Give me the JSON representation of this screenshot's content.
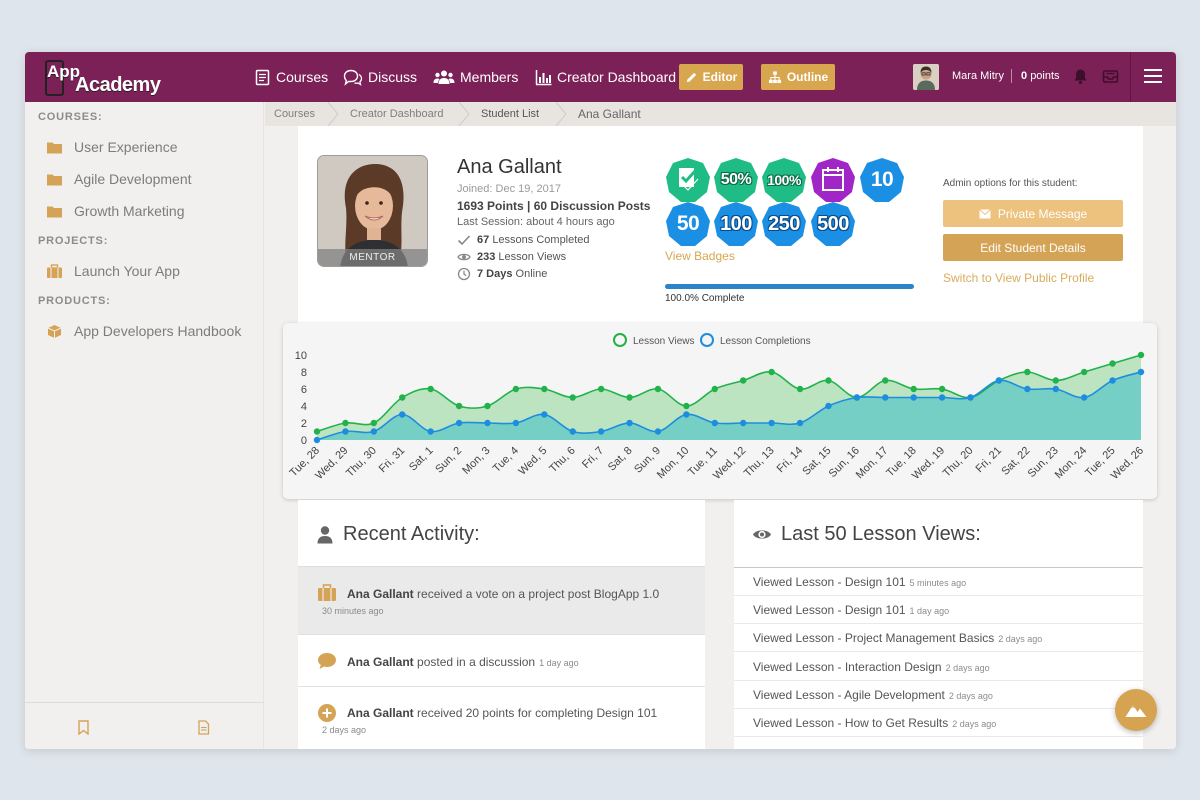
{
  "app": {
    "logo_line1": "App",
    "logo_line2": "Academy"
  },
  "nav": [
    {
      "label": "Courses",
      "icon": "book-icon"
    },
    {
      "label": "Discuss",
      "icon": "chat-icon"
    },
    {
      "label": "Members",
      "icon": "users-icon"
    },
    {
      "label": "Creator Dashboard",
      "icon": "bar-chart-icon"
    }
  ],
  "toolbar": {
    "editor_label": "Editor",
    "outline_label": "Outline"
  },
  "user": {
    "name": "Mara Mitry",
    "points_value": "0",
    "points_label": "points"
  },
  "sidebar": {
    "courses_heading": "COURSES:",
    "courses": [
      "User Experience",
      "Agile Development",
      "Growth Marketing"
    ],
    "projects_heading": "PROJECTS:",
    "projects": [
      "Launch Your App"
    ],
    "products_heading": "PRODUCTS:",
    "products": [
      "App Developers Handbook"
    ]
  },
  "breadcrumb": [
    "Courses",
    "Creator Dashboard",
    "Student List",
    "Ana Gallant"
  ],
  "profile": {
    "name": "Ana Gallant",
    "joined": "Joined: Dec 19, 2017",
    "points_line": "1693 Points | 60 Discussion Posts",
    "last_session": "Last Session: about 4 hours ago",
    "mentor_label": "MENTOR",
    "stats": [
      {
        "value": "67",
        "label": "Lessons Completed",
        "icon": "check-icon"
      },
      {
        "value": "233",
        "label": "Lesson Views",
        "icon": "eye-icon"
      },
      {
        "value": "7 Days",
        "label": "Online",
        "icon": "clock-icon"
      }
    ]
  },
  "badges": [
    {
      "text": "",
      "icon": "checklist-badge-icon",
      "color": "#1fbc85"
    },
    {
      "text": "50%",
      "icon": "percent-badge-icon",
      "color": "#1fbc85"
    },
    {
      "text": "100%",
      "icon": "percent-badge-icon",
      "color": "#1fbc85"
    },
    {
      "text": "",
      "icon": "calendar-badge-icon",
      "color": "#a026c8"
    },
    {
      "text": "10",
      "icon": "number-badge-icon",
      "color": "#1a8fe3"
    },
    {
      "text": "50",
      "icon": "number-badge-icon",
      "color": "#1a8fe3"
    },
    {
      "text": "100",
      "icon": "number-badge-icon",
      "color": "#1a8fe3"
    },
    {
      "text": "250",
      "icon": "number-badge-icon",
      "color": "#1a8fe3"
    },
    {
      "text": "500",
      "icon": "number-badge-icon",
      "color": "#1a8fe3"
    }
  ],
  "badges_link": "View Badges",
  "progress": {
    "value": 1.0,
    "label": "100.0% Complete"
  },
  "admin": {
    "heading": "Admin options for this student:",
    "message_label": "Private Message",
    "edit_label": "Edit Student Details",
    "public_link": "Switch to View Public Profile"
  },
  "chart_data": {
    "type": "area",
    "categories": [
      "Tue, 28",
      "Wed, 29",
      "Thu, 30",
      "Fri, 31",
      "Sat, 1",
      "Sun, 2",
      "Mon, 3",
      "Tue, 4",
      "Wed, 5",
      "Thu, 6",
      "Fri, 7",
      "Sat, 8",
      "Sun, 9",
      "Mon, 10",
      "Tue, 11",
      "Wed, 12",
      "Thu, 13",
      "Fri, 14",
      "Sat, 15",
      "Sun, 16",
      "Mon, 17",
      "Tue, 18",
      "Wed, 19",
      "Thu, 20",
      "Fri, 21",
      "Sat, 22",
      "Sun, 23",
      "Mon, 24",
      "Tue, 25",
      "Wed, 26"
    ],
    "series": [
      {
        "name": "Lesson Views",
        "color": "#21b24b",
        "values": [
          1,
          2,
          2,
          5,
          6,
          4,
          4,
          6,
          6,
          5,
          6,
          5,
          6,
          4,
          6,
          7,
          8,
          6,
          7,
          5,
          7,
          6,
          6,
          5,
          7,
          8,
          7,
          8,
          9,
          10
        ]
      },
      {
        "name": "Lesson Completions",
        "color": "#1d8de0",
        "values": [
          0,
          1,
          1,
          3,
          1,
          2,
          2,
          2,
          3,
          1,
          1,
          2,
          1,
          3,
          2,
          2,
          2,
          2,
          4,
          5,
          5,
          5,
          5,
          5,
          7,
          6,
          6,
          5,
          7,
          8
        ]
      }
    ],
    "y_ticks": [
      0,
      2,
      4,
      6,
      8,
      10
    ],
    "ylim": [
      0,
      10
    ],
    "legend": "top-center",
    "grid": false
  },
  "activity": {
    "title": "Recent Activity:",
    "items": [
      {
        "name": "Ana Gallant",
        "text": "received a vote on a project post BlogApp 1.0",
        "time": "30 minutes ago",
        "icon": "briefcase-icon"
      },
      {
        "name": "Ana Gallant",
        "text": "posted in a discussion",
        "time": "1 day ago",
        "icon": "speech-bubble-icon"
      },
      {
        "name": "Ana Gallant",
        "text": "received 20 points for completing Design 101",
        "time": "2 days ago",
        "icon": "plus-circle-icon"
      }
    ]
  },
  "lesson_views": {
    "title": "Last 50 Lesson Views:",
    "items": [
      {
        "text": "Viewed Lesson - Design 101",
        "time": "5 minutes ago"
      },
      {
        "text": "Viewed Lesson - Design 101",
        "time": "1 day ago"
      },
      {
        "text": "Viewed Lesson - Project Management Basics",
        "time": "2 days ago"
      },
      {
        "text": "Viewed Lesson - Interaction Design",
        "time": "2 days ago"
      },
      {
        "text": "Viewed Lesson - Agile Development",
        "time": "2 days ago"
      },
      {
        "text": "Viewed Lesson - How to Get Results",
        "time": "2 days ago"
      }
    ]
  },
  "colors": {
    "brand": "#7b2157",
    "accent": "#d8a64f",
    "progress": "#2b83c9"
  }
}
